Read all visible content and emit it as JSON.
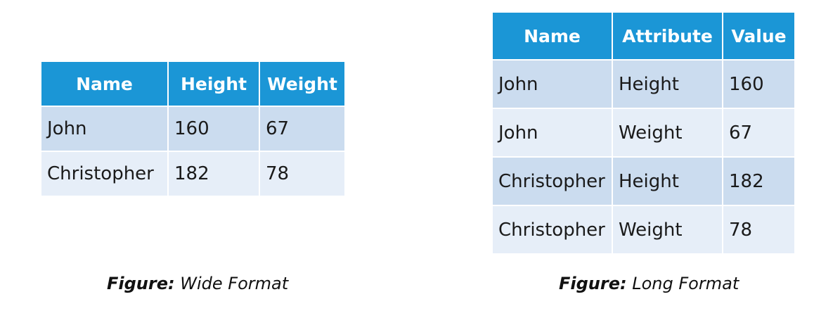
{
  "wide_table": {
    "headers": [
      "Name",
      "Height",
      "Weight"
    ],
    "rows": [
      [
        "John",
        "160",
        "67"
      ],
      [
        "Christopher",
        "182",
        "78"
      ]
    ]
  },
  "long_table": {
    "headers": [
      "Name",
      "Attribute",
      "Value"
    ],
    "rows": [
      [
        "John",
        "Height",
        "160"
      ],
      [
        "John",
        "Weight",
        "67"
      ],
      [
        "Christopher",
        "Height",
        "182"
      ],
      [
        "Christopher",
        "Weight",
        "78"
      ]
    ]
  },
  "captions": {
    "wide": {
      "label": "Figure:",
      "title": "Wide Format"
    },
    "long": {
      "label": "Figure:",
      "title": "Long Format"
    }
  },
  "colors": {
    "header_bg": "#1b96d6",
    "row_dark": "#cbdcef",
    "row_light": "#e6eef8"
  }
}
